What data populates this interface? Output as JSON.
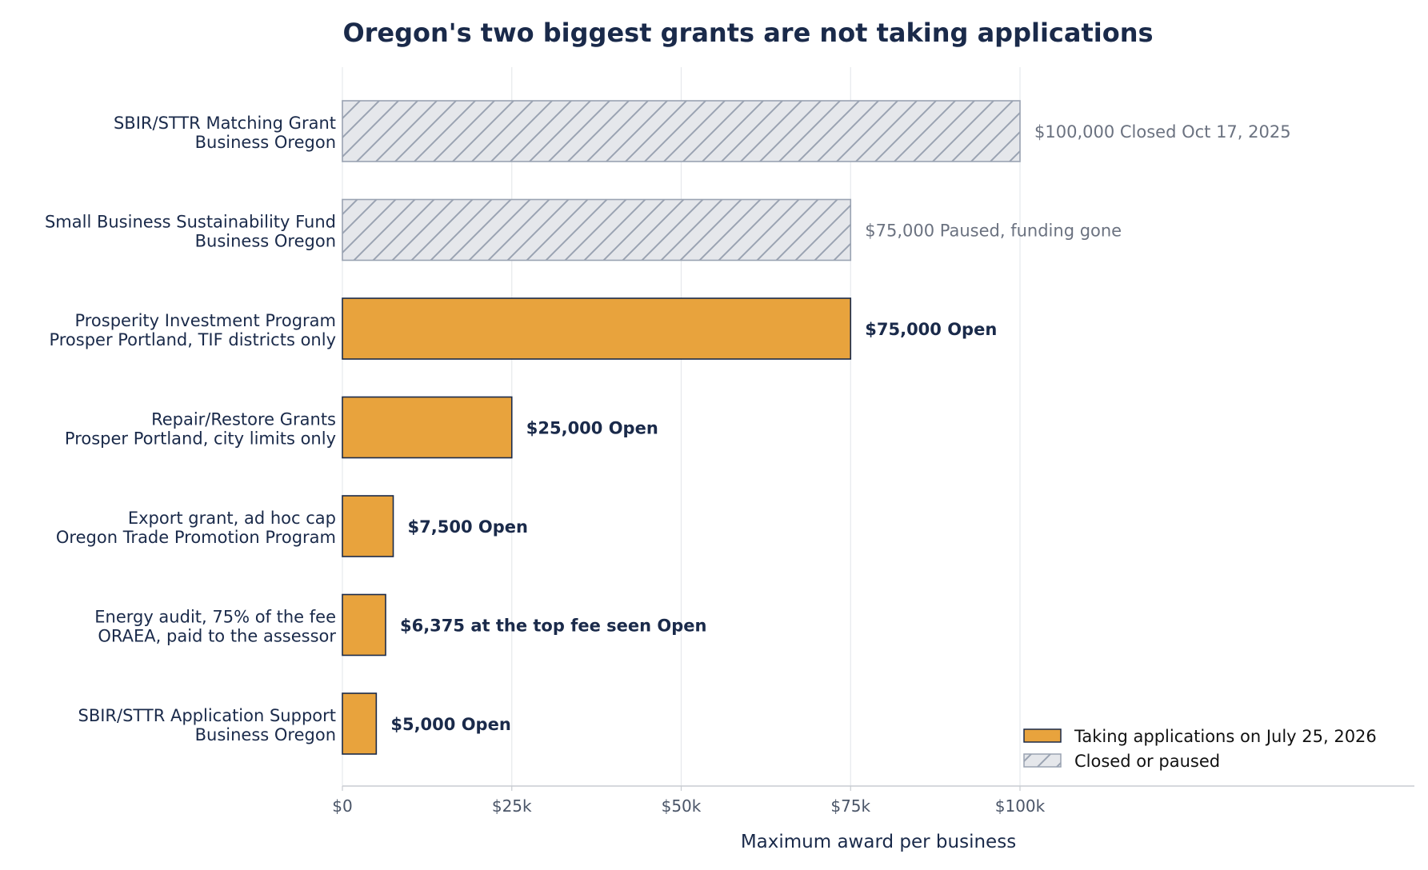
{
  "chart_data": {
    "type": "bar",
    "orientation": "horizontal",
    "title": "Oregon's two biggest grants are not taking applications",
    "xlabel": "Maximum award per business",
    "ylabel": "",
    "xlim": [
      0,
      158000
    ],
    "xticks": [
      {
        "value": 0,
        "label": "$0"
      },
      {
        "value": 25000,
        "label": "$25k"
      },
      {
        "value": 50000,
        "label": "$50k"
      },
      {
        "value": 75000,
        "label": "$75k"
      },
      {
        "value": 100000,
        "label": "$100k"
      }
    ],
    "grid": "vertical",
    "legend_position": "bottom-right",
    "colors": {
      "open_fill": "#e8a33d",
      "open_edge": "#1a2a4a",
      "closed_fill": "#e5e7eb",
      "closed_edge": "#9aa3b2",
      "open_text": "#1a2a4a",
      "closed_text": "#6b7280"
    },
    "legend": [
      {
        "key": "open",
        "label": "Taking applications on July 25, 2026"
      },
      {
        "key": "closed",
        "label": "Closed or paused"
      }
    ],
    "bars": [
      {
        "name": "SBIR/STTR Matching Grant",
        "agency": "Business Oregon",
        "value": 100000,
        "value_label": "$100,000",
        "status": "Closed Oct 17, 2025",
        "group": "closed"
      },
      {
        "name": "Small Business Sustainability Fund",
        "agency": "Business Oregon",
        "value": 75000,
        "value_label": "$75,000",
        "status": "Paused, funding gone",
        "group": "closed"
      },
      {
        "name": "Prosperity Investment Program",
        "agency": "Prosper Portland, TIF districts only",
        "value": 75000,
        "value_label": "$75,000",
        "status": "Open",
        "group": "open"
      },
      {
        "name": "Repair/Restore Grants",
        "agency": "Prosper Portland, city limits only",
        "value": 25000,
        "value_label": "$25,000",
        "status": "Open",
        "group": "open"
      },
      {
        "name": "Export grant, ad hoc cap",
        "agency": "Oregon Trade Promotion Program",
        "value": 7500,
        "value_label": "$7,500",
        "status": "Open",
        "group": "open"
      },
      {
        "name": "Energy audit, 75% of the fee",
        "agency": "ORAEA, paid to the assessor",
        "value": 6375,
        "value_label": "$6,375 at the top fee seen",
        "status": "Open",
        "group": "open"
      },
      {
        "name": "SBIR/STTR Application Support",
        "agency": "Business Oregon",
        "value": 5000,
        "value_label": "$5,000",
        "status": "Open",
        "group": "open"
      }
    ]
  }
}
